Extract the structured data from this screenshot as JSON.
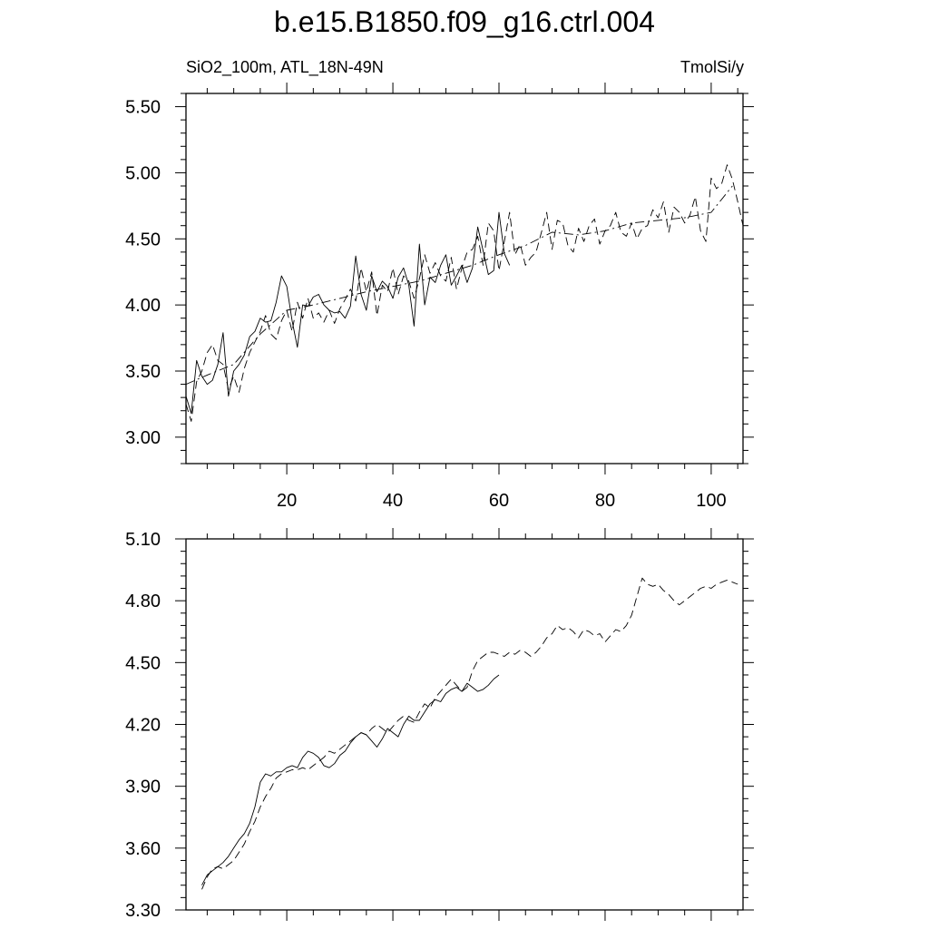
{
  "title": "b.e15.B1850.f09_g16.ctrl.004",
  "subtitle_left": "SiO2_100m, ATL_18N-49N",
  "subtitle_right": "TmolSi/y",
  "chart_data": [
    {
      "type": "line",
      "panel": "top",
      "xlim": [
        1,
        106
      ],
      "ylim": [
        2.8,
        5.6
      ],
      "xticks": [
        20,
        40,
        60,
        80,
        100
      ],
      "xtick_labels": [
        "20",
        "40",
        "60",
        "80",
        "100"
      ],
      "yticks": [
        3.0,
        3.5,
        4.0,
        4.5,
        5.0,
        5.5
      ],
      "ytick_labels": [
        "3.00",
        "3.50",
        "4.00",
        "4.50",
        "5.00",
        "5.50"
      ],
      "grid": false,
      "series": [
        {
          "style": "solid",
          "x": [
            1,
            2,
            3,
            4,
            5,
            6,
            7,
            8,
            9,
            10,
            11,
            12,
            13,
            14,
            15,
            16,
            17,
            18,
            19,
            20,
            21,
            22,
            23,
            24,
            25,
            26,
            27,
            28,
            29,
            30,
            31,
            32,
            33,
            34,
            35,
            36,
            37,
            38,
            39,
            40,
            41,
            42,
            43,
            44,
            45,
            46,
            47,
            48,
            49,
            50,
            51,
            52,
            53,
            54,
            55,
            56,
            57,
            58,
            59,
            60,
            61,
            62
          ],
          "values": [
            3.31,
            3.18,
            3.58,
            3.46,
            3.4,
            3.43,
            3.55,
            3.79,
            3.31,
            3.5,
            3.55,
            3.62,
            3.76,
            3.8,
            3.9,
            3.87,
            3.88,
            4.02,
            4.22,
            4.14,
            3.88,
            3.68,
            4.0,
            3.99,
            4.06,
            4.08,
            4.0,
            3.96,
            3.94,
            3.95,
            3.9,
            3.99,
            4.37,
            4.08,
            3.96,
            4.22,
            4.1,
            4.18,
            4.14,
            4.05,
            4.21,
            4.28,
            4.15,
            3.84,
            4.46,
            4.0,
            4.21,
            4.17,
            4.3,
            4.38,
            4.15,
            4.22,
            4.3,
            4.17,
            4.28,
            4.59,
            4.41,
            4.23,
            4.26,
            4.7,
            4.39,
            4.3
          ]
        },
        {
          "style": "dashed",
          "x": [
            1,
            2,
            3,
            4,
            5,
            6,
            7,
            8,
            9,
            10,
            11,
            12,
            13,
            14,
            15,
            16,
            17,
            18,
            19,
            20,
            21,
            22,
            23,
            24,
            25,
            26,
            27,
            28,
            29,
            30,
            31,
            32,
            33,
            34,
            35,
            36,
            37,
            38,
            39,
            40,
            41,
            42,
            43,
            44,
            45,
            46,
            47,
            48,
            49,
            50,
            51,
            52,
            53,
            54,
            55,
            56,
            57,
            58,
            59,
            60,
            61,
            62,
            63,
            64,
            65,
            66,
            67,
            68,
            69,
            70,
            71,
            72,
            73,
            74,
            75,
            76,
            77,
            78,
            79,
            80,
            81,
            82,
            83,
            84,
            85,
            86,
            87,
            88,
            89,
            90,
            91,
            92,
            93,
            94,
            95,
            96,
            97,
            98,
            99,
            100,
            101,
            102,
            103,
            104,
            105,
            106
          ],
          "values": [
            3.25,
            3.12,
            3.42,
            3.5,
            3.64,
            3.7,
            3.58,
            3.55,
            3.36,
            3.46,
            3.34,
            3.52,
            3.64,
            3.72,
            3.8,
            3.92,
            3.78,
            3.74,
            3.88,
            3.96,
            3.8,
            4.02,
            3.9,
            4.05,
            3.9,
            3.94,
            3.87,
            3.96,
            3.86,
            3.97,
            4.04,
            4.12,
            4.03,
            4.28,
            4.1,
            4.25,
            3.92,
            4.15,
            4.1,
            4.28,
            4.08,
            4.22,
            4.18,
            4.05,
            4.2,
            4.38,
            4.24,
            4.32,
            4.22,
            4.18,
            4.36,
            4.12,
            4.28,
            4.4,
            4.42,
            4.52,
            4.3,
            4.62,
            4.56,
            4.26,
            4.48,
            4.7,
            4.38,
            4.46,
            4.3,
            4.36,
            4.4,
            4.55,
            4.7,
            4.42,
            4.64,
            4.62,
            4.45,
            4.4,
            4.58,
            4.48,
            4.6,
            4.65,
            4.46,
            4.56,
            4.6,
            4.7,
            4.55,
            4.52,
            4.62,
            4.5,
            4.58,
            4.6,
            4.72,
            4.66,
            4.78,
            4.55,
            4.74,
            4.7,
            4.62,
            4.68,
            4.82,
            4.56,
            4.48,
            4.96,
            4.88,
            4.92,
            5.06,
            4.95,
            4.78,
            4.6
          ]
        },
        {
          "style": "dash-dot",
          "x": [
            1,
            5,
            10,
            15,
            20,
            25,
            30,
            35,
            40,
            45,
            50,
            55,
            60,
            65,
            70,
            75,
            80,
            85,
            90,
            95,
            100,
            104
          ],
          "values": [
            3.4,
            3.47,
            3.55,
            3.78,
            3.96,
            4.0,
            4.05,
            4.1,
            4.14,
            4.18,
            4.24,
            4.3,
            4.38,
            4.45,
            4.55,
            4.53,
            4.56,
            4.62,
            4.64,
            4.66,
            4.7,
            4.9
          ]
        }
      ]
    },
    {
      "type": "line",
      "panel": "bottom",
      "xlim": [
        1,
        106
      ],
      "ylim": [
        3.3,
        5.1
      ],
      "xticks": [
        20,
        40,
        60,
        80,
        100
      ],
      "yticks": [
        3.3,
        3.6,
        3.9,
        4.2,
        4.5,
        4.8,
        5.1
      ],
      "ytick_labels": [
        "3.30",
        "3.60",
        "3.90",
        "4.20",
        "4.50",
        "4.80",
        "5.10"
      ],
      "grid": false,
      "series": [
        {
          "style": "solid",
          "x": [
            4,
            5,
            6,
            7,
            8,
            9,
            10,
            11,
            12,
            13,
            14,
            15,
            16,
            17,
            18,
            19,
            20,
            21,
            22,
            23,
            24,
            25,
            26,
            27,
            28,
            29,
            30,
            31,
            32,
            33,
            34,
            35,
            36,
            37,
            38,
            39,
            40,
            41,
            42,
            43,
            44,
            45,
            46,
            47,
            48,
            49,
            50,
            51,
            52,
            53,
            54,
            55,
            56,
            57,
            58,
            59,
            60
          ],
          "values": [
            3.42,
            3.47,
            3.49,
            3.51,
            3.53,
            3.56,
            3.6,
            3.64,
            3.67,
            3.72,
            3.8,
            3.92,
            3.96,
            3.95,
            3.97,
            3.97,
            3.99,
            4.0,
            3.99,
            4.04,
            4.07,
            4.06,
            4.04,
            4.0,
            3.99,
            4.01,
            4.05,
            4.07,
            4.11,
            4.14,
            4.16,
            4.15,
            4.12,
            4.09,
            4.13,
            4.18,
            4.16,
            4.14,
            4.2,
            4.24,
            4.22,
            4.22,
            4.26,
            4.3,
            4.32,
            4.31,
            4.35,
            4.37,
            4.38,
            4.36,
            4.4,
            4.38,
            4.36,
            4.37,
            4.39,
            4.42,
            4.44
          ]
        },
        {
          "style": "dashed",
          "x": [
            4,
            5,
            6,
            7,
            8,
            9,
            10,
            11,
            12,
            13,
            14,
            15,
            16,
            17,
            18,
            19,
            20,
            21,
            22,
            23,
            24,
            25,
            26,
            27,
            28,
            29,
            30,
            31,
            32,
            33,
            34,
            35,
            36,
            37,
            38,
            39,
            40,
            41,
            42,
            43,
            44,
            45,
            46,
            47,
            48,
            49,
            50,
            51,
            52,
            53,
            54,
            55,
            56,
            57,
            58,
            59,
            60,
            61,
            62,
            63,
            64,
            65,
            66,
            67,
            68,
            69,
            70,
            71,
            72,
            73,
            74,
            75,
            76,
            77,
            78,
            79,
            80,
            81,
            82,
            83,
            84,
            85,
            86,
            87,
            88,
            89,
            90,
            91,
            92,
            93,
            94,
            95,
            96,
            97,
            98,
            99,
            100,
            101,
            102,
            103,
            104,
            105
          ],
          "values": [
            3.4,
            3.46,
            3.5,
            3.51,
            3.5,
            3.52,
            3.54,
            3.58,
            3.62,
            3.68,
            3.73,
            3.8,
            3.85,
            3.89,
            3.94,
            3.96,
            3.97,
            3.98,
            3.98,
            3.99,
            3.98,
            4.0,
            4.02,
            4.04,
            4.07,
            4.06,
            4.08,
            4.1,
            4.12,
            4.14,
            4.16,
            4.15,
            4.18,
            4.2,
            4.18,
            4.16,
            4.19,
            4.22,
            4.24,
            4.22,
            4.21,
            4.26,
            4.3,
            4.28,
            4.33,
            4.36,
            4.39,
            4.42,
            4.39,
            4.36,
            4.38,
            4.46,
            4.51,
            4.53,
            4.55,
            4.55,
            4.54,
            4.53,
            4.55,
            4.54,
            4.56,
            4.55,
            4.53,
            4.55,
            4.58,
            4.62,
            4.64,
            4.68,
            4.66,
            4.67,
            4.65,
            4.62,
            4.66,
            4.65,
            4.63,
            4.64,
            4.6,
            4.63,
            4.66,
            4.65,
            4.68,
            4.73,
            4.82,
            4.91,
            4.88,
            4.87,
            4.88,
            4.85,
            4.83,
            4.8,
            4.78,
            4.8,
            4.82,
            4.84,
            4.86,
            4.87,
            4.86,
            4.88,
            4.89,
            4.9,
            4.89,
            4.88
          ]
        }
      ]
    }
  ]
}
